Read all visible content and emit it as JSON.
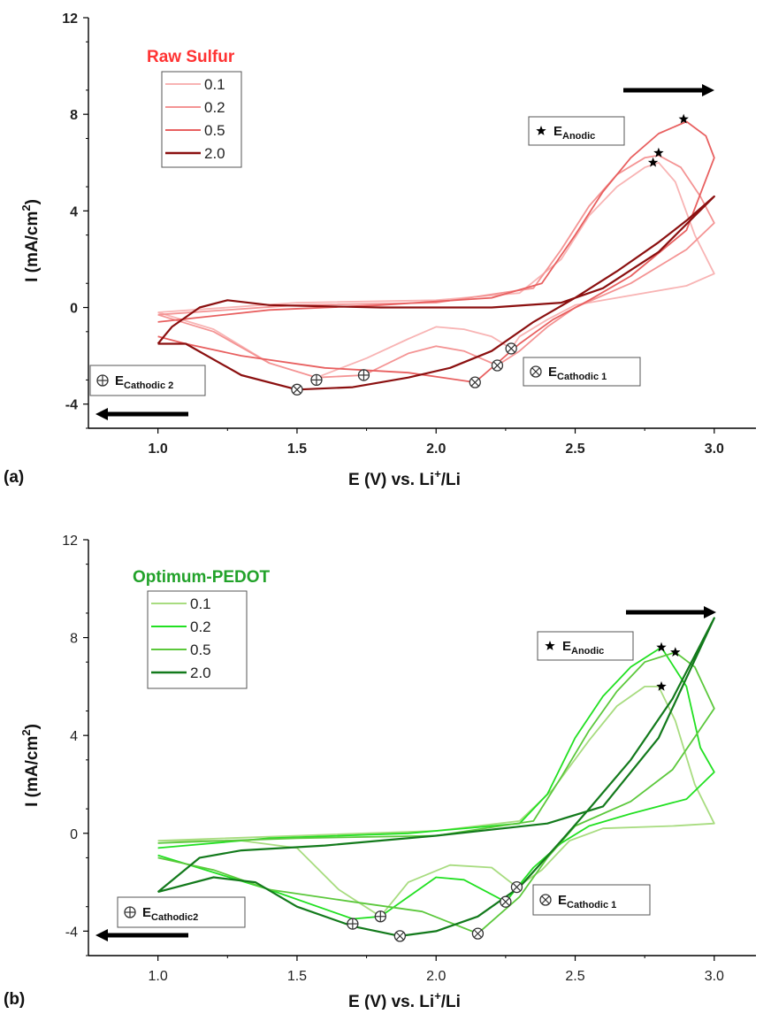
{
  "chart_data": [
    {
      "type": "line",
      "panel": "(a)",
      "legend_title": "Raw Sulfur",
      "legend_title_color": "#ff3333",
      "legend_placement": "top-left",
      "xlabel": "E (V) vs. Li+/Li",
      "xlabel_main": "E (V) vs. Li",
      "xlabel_sup": "+",
      "xlabel_tail": "/Li",
      "ylabel": "I (mA/cm2)",
      "ylabel_main": "I (mA/cm",
      "ylabel_sup": "2",
      "ylabel_tail": ")",
      "xlim": [
        0.75,
        3.15
      ],
      "ylim": [
        -5,
        12
      ],
      "xticks": [
        1.0,
        1.5,
        2.0,
        2.5,
        3.0
      ],
      "xtick_labels": [
        "1.0",
        "1.5",
        "2.0",
        "2.5",
        "3.0"
      ],
      "yticks": [
        -4,
        0,
        4,
        8,
        12
      ],
      "ytick_labels": [
        "-4",
        "0",
        "4",
        "8",
        "12"
      ],
      "grid": false,
      "series": [
        {
          "name": "0.1",
          "color": "#f8b4b4",
          "points": [
            [
              1.0,
              -0.2
            ],
            [
              1.5,
              0.2
            ],
            [
              2.0,
              0.3
            ],
            [
              2.3,
              0.6
            ],
            [
              2.45,
              2.0
            ],
            [
              2.55,
              3.8
            ],
            [
              2.65,
              5.0
            ],
            [
              2.75,
              5.8
            ],
            [
              2.8,
              6.0
            ],
            [
              2.86,
              5.2
            ],
            [
              2.93,
              3.0
            ],
            [
              3.0,
              1.4
            ],
            [
              2.9,
              0.9
            ],
            [
              2.7,
              0.5
            ],
            [
              2.5,
              0.1
            ],
            [
              2.4,
              -0.5
            ],
            [
              2.3,
              -1.2
            ],
            [
              2.27,
              -1.7
            ],
            [
              2.2,
              -1.2
            ],
            [
              2.1,
              -0.9
            ],
            [
              2.0,
              -0.8
            ],
            [
              1.9,
              -1.3
            ],
            [
              1.75,
              -2.1
            ],
            [
              1.57,
              -2.9
            ],
            [
              1.4,
              -2.3
            ],
            [
              1.2,
              -0.9
            ],
            [
              1.0,
              -0.2
            ]
          ]
        },
        {
          "name": "0.2",
          "color": "#f49494",
          "points": [
            [
              1.0,
              -0.3
            ],
            [
              1.5,
              0.1
            ],
            [
              2.0,
              0.2
            ],
            [
              2.35,
              0.8
            ],
            [
              2.45,
              2.4
            ],
            [
              2.55,
              4.2
            ],
            [
              2.65,
              5.5
            ],
            [
              2.75,
              6.2
            ],
            [
              2.8,
              6.3
            ],
            [
              2.88,
              5.8
            ],
            [
              2.95,
              4.6
            ],
            [
              3.0,
              3.5
            ],
            [
              2.9,
              2.4
            ],
            [
              2.7,
              1.0
            ],
            [
              2.5,
              0.0
            ],
            [
              2.4,
              -0.8
            ],
            [
              2.3,
              -1.8
            ],
            [
              2.22,
              -2.4
            ],
            [
              2.1,
              -1.8
            ],
            [
              2.0,
              -1.6
            ],
            [
              1.9,
              -1.9
            ],
            [
              1.74,
              -2.8
            ],
            [
              1.57,
              -2.9
            ],
            [
              1.4,
              -2.3
            ],
            [
              1.2,
              -1.0
            ],
            [
              1.0,
              -0.3
            ]
          ]
        },
        {
          "name": "0.5",
          "color": "#e86060",
          "points": [
            [
              1.0,
              -0.6
            ],
            [
              1.4,
              -0.1
            ],
            [
              1.8,
              0.1
            ],
            [
              2.2,
              0.4
            ],
            [
              2.38,
              1.0
            ],
            [
              2.5,
              3.0
            ],
            [
              2.6,
              4.8
            ],
            [
              2.7,
              6.2
            ],
            [
              2.8,
              7.2
            ],
            [
              2.9,
              7.7
            ],
            [
              2.97,
              7.1
            ],
            [
              3.0,
              6.2
            ],
            [
              2.9,
              3.2
            ],
            [
              2.7,
              1.3
            ],
            [
              2.55,
              0.3
            ],
            [
              2.42,
              -0.5
            ],
            [
              2.3,
              -1.5
            ],
            [
              2.14,
              -3.1
            ],
            [
              1.9,
              -2.7
            ],
            [
              1.6,
              -2.5
            ],
            [
              1.3,
              -2.0
            ],
            [
              1.1,
              -1.5
            ],
            [
              1.0,
              -1.2
            ]
          ]
        },
        {
          "name": "2.0",
          "color": "#8b1010",
          "points": [
            [
              1.0,
              -1.5
            ],
            [
              1.1,
              -1.5
            ],
            [
              1.3,
              -2.8
            ],
            [
              1.5,
              -3.4
            ],
            [
              1.7,
              -3.3
            ],
            [
              1.9,
              -2.9
            ],
            [
              2.05,
              -2.5
            ],
            [
              2.2,
              -1.8
            ],
            [
              2.35,
              -0.6
            ],
            [
              2.5,
              0.4
            ],
            [
              2.65,
              1.5
            ],
            [
              2.8,
              2.7
            ],
            [
              2.9,
              3.6
            ],
            [
              3.0,
              4.6
            ],
            [
              2.8,
              2.3
            ],
            [
              2.6,
              0.8
            ],
            [
              2.45,
              0.2
            ],
            [
              2.2,
              0.0
            ],
            [
              1.8,
              0.0
            ],
            [
              1.4,
              0.1
            ],
            [
              1.25,
              0.3
            ],
            [
              1.15,
              0.0
            ],
            [
              1.05,
              -0.8
            ],
            [
              1.0,
              -1.5
            ]
          ]
        }
      ],
      "markers_anodic": [
        [
          2.78,
          6.0
        ],
        [
          2.8,
          6.4
        ],
        [
          2.89,
          7.8
        ]
      ],
      "markers_cathodic1": [
        [
          2.27,
          -1.7
        ],
        [
          2.22,
          -2.4
        ],
        [
          2.14,
          -3.1
        ],
        [
          1.5,
          -3.4
        ]
      ],
      "markers_cathodic2": [
        [
          1.74,
          -2.8
        ],
        [
          1.57,
          -3.0
        ]
      ],
      "legend_anodic_main": "E",
      "legend_anodic_sub": "Anodic",
      "legend_cathodic1_main": "E",
      "legend_cathodic1_sub": "Cathodic 1",
      "legend_cathodic2_main": "E",
      "legend_cathodic2_sub": "Cathodic 2"
    },
    {
      "type": "line",
      "panel": "(b)",
      "legend_title": "Optimum-PEDOT",
      "legend_title_color": "#22a22a",
      "legend_placement": "top-left",
      "xlabel": "E (V) vs. Li+/Li",
      "xlabel_main": "E (V) vs. Li",
      "xlabel_sup": "+",
      "xlabel_tail": "/Li",
      "ylabel": "I (mA/cm2)",
      "ylabel_main": "I (mA/cm",
      "ylabel_sup": "2",
      "ylabel_tail": ")",
      "xlim": [
        0.75,
        3.15
      ],
      "ylim": [
        -5,
        12
      ],
      "xticks": [
        1.0,
        1.5,
        2.0,
        2.5,
        3.0
      ],
      "xtick_labels": [
        "1.0",
        "1.5",
        "2.0",
        "2.5",
        "3.0"
      ],
      "yticks": [
        -4,
        0,
        4,
        8,
        12
      ],
      "ytick_labels": [
        "-4",
        "0",
        "4",
        "8",
        "12"
      ],
      "grid": false,
      "series": [
        {
          "name": "0.1",
          "color": "#a8dc80",
          "points": [
            [
              1.0,
              -0.3
            ],
            [
              1.5,
              -0.1
            ],
            [
              2.0,
              0.1
            ],
            [
              2.3,
              0.5
            ],
            [
              2.42,
              1.8
            ],
            [
              2.55,
              3.8
            ],
            [
              2.65,
              5.2
            ],
            [
              2.75,
              6.0
            ],
            [
              2.8,
              6.0
            ],
            [
              2.86,
              4.6
            ],
            [
              2.93,
              2.0
            ],
            [
              3.0,
              0.4
            ],
            [
              2.85,
              0.3
            ],
            [
              2.6,
              0.2
            ],
            [
              2.48,
              -0.3
            ],
            [
              2.38,
              -1.5
            ],
            [
              2.29,
              -2.2
            ],
            [
              2.2,
              -1.4
            ],
            [
              2.05,
              -1.3
            ],
            [
              1.9,
              -2.0
            ],
            [
              1.8,
              -3.4
            ],
            [
              1.65,
              -2.3
            ],
            [
              1.5,
              -0.6
            ],
            [
              1.3,
              -0.3
            ],
            [
              1.0,
              -0.3
            ]
          ]
        },
        {
          "name": "0.2",
          "color": "#22e022",
          "points": [
            [
              1.0,
              -0.6
            ],
            [
              1.4,
              -0.2
            ],
            [
              1.9,
              0.0
            ],
            [
              2.3,
              0.4
            ],
            [
              2.4,
              1.6
            ],
            [
              2.5,
              3.9
            ],
            [
              2.6,
              5.6
            ],
            [
              2.7,
              6.8
            ],
            [
              2.81,
              7.6
            ],
            [
              2.9,
              6.0
            ],
            [
              2.95,
              3.5
            ],
            [
              3.0,
              2.5
            ],
            [
              2.9,
              1.4
            ],
            [
              2.7,
              0.8
            ],
            [
              2.55,
              0.3
            ],
            [
              2.45,
              -0.4
            ],
            [
              2.35,
              -1.4
            ],
            [
              2.25,
              -2.8
            ],
            [
              2.1,
              -1.9
            ],
            [
              2.0,
              -1.8
            ],
            [
              1.9,
              -2.6
            ],
            [
              1.8,
              -3.4
            ],
            [
              1.7,
              -3.5
            ],
            [
              1.4,
              -2.3
            ],
            [
              1.2,
              -1.6
            ],
            [
              1.0,
              -0.9
            ]
          ]
        },
        {
          "name": "0.5",
          "color": "#5cc83c",
          "points": [
            [
              1.0,
              -0.4
            ],
            [
              1.5,
              -0.2
            ],
            [
              2.0,
              -0.1
            ],
            [
              2.35,
              0.5
            ],
            [
              2.45,
              2.3
            ],
            [
              2.55,
              4.2
            ],
            [
              2.65,
              5.8
            ],
            [
              2.75,
              7.0
            ],
            [
              2.86,
              7.4
            ],
            [
              2.93,
              6.8
            ],
            [
              3.0,
              5.1
            ],
            [
              2.85,
              2.6
            ],
            [
              2.7,
              1.3
            ],
            [
              2.5,
              0.3
            ],
            [
              2.4,
              -1.0
            ],
            [
              2.3,
              -2.6
            ],
            [
              2.15,
              -4.1
            ],
            [
              1.95,
              -3.2
            ],
            [
              1.7,
              -2.8
            ],
            [
              1.4,
              -2.3
            ],
            [
              1.2,
              -1.5
            ],
            [
              1.0,
              -1.0
            ]
          ]
        },
        {
          "name": "2.0",
          "color": "#137a1c",
          "points": [
            [
              1.0,
              -2.4
            ],
            [
              1.2,
              -1.8
            ],
            [
              1.35,
              -2.0
            ],
            [
              1.5,
              -3.0
            ],
            [
              1.7,
              -3.8
            ],
            [
              1.87,
              -4.2
            ],
            [
              2.0,
              -4.0
            ],
            [
              2.15,
              -3.4
            ],
            [
              2.3,
              -2.2
            ],
            [
              2.45,
              -0.3
            ],
            [
              2.55,
              1.0
            ],
            [
              2.7,
              3.0
            ],
            [
              2.85,
              5.5
            ],
            [
              3.0,
              8.8
            ],
            [
              2.8,
              3.9
            ],
            [
              2.6,
              1.1
            ],
            [
              2.4,
              0.4
            ],
            [
              2.0,
              -0.1
            ],
            [
              1.6,
              -0.5
            ],
            [
              1.3,
              -0.7
            ],
            [
              1.15,
              -1.0
            ],
            [
              1.0,
              -2.4
            ]
          ]
        }
      ],
      "markers_anodic": [
        [
          2.81,
          7.6
        ],
        [
          2.86,
          7.4
        ],
        [
          2.81,
          6.0
        ]
      ],
      "markers_cathodic1": [
        [
          2.29,
          -2.2
        ],
        [
          2.25,
          -2.8
        ],
        [
          2.15,
          -4.1
        ],
        [
          1.87,
          -4.2
        ]
      ],
      "markers_cathodic2": [
        [
          1.8,
          -3.4
        ],
        [
          1.7,
          -3.7
        ]
      ],
      "legend_anodic_main": "E",
      "legend_anodic_sub": "Anodic",
      "legend_cathodic1_main": "E",
      "legend_cathodic1_sub": "Cathodic 1",
      "legend_cathodic2_main": "E",
      "legend_cathodic2_sub": "Cathodic2"
    }
  ]
}
